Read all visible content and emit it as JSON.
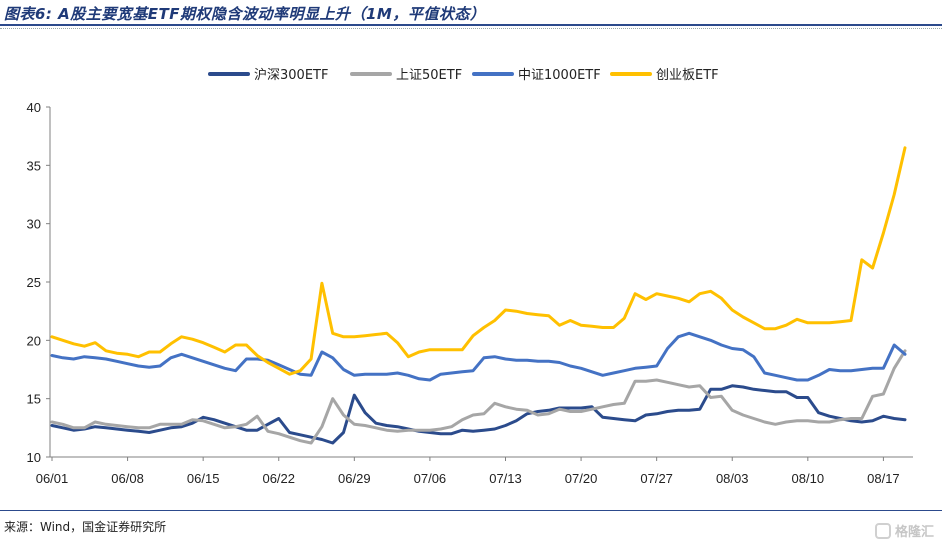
{
  "figure": {
    "title": "图表6: A股主要宽基ETF期权隐含波动率明显上升（1M，平值状态）",
    "source": "来源：Wind，国金证券研究所",
    "watermark": "格隆汇"
  },
  "chart_data": {
    "type": "line",
    "title": "",
    "xlabel": "",
    "ylabel": "",
    "ylim": [
      10,
      40
    ],
    "yticks": [
      10,
      15,
      20,
      25,
      30,
      35,
      40
    ],
    "grid": false,
    "legend_position": "top-center",
    "x_tick_labels": [
      "06/01",
      "06/08",
      "06/15",
      "06/22",
      "06/29",
      "07/06",
      "07/13",
      "07/20",
      "07/27",
      "08/03",
      "08/10",
      "08/17"
    ],
    "x": [
      "06/01",
      "06/02",
      "06/03",
      "06/04",
      "06/05",
      "06/06",
      "06/07",
      "06/08",
      "06/09",
      "06/10",
      "06/11",
      "06/12",
      "06/13",
      "06/14",
      "06/15",
      "06/16",
      "06/17",
      "06/18",
      "06/19",
      "06/20",
      "06/21",
      "06/22",
      "06/23",
      "06/24",
      "06/25",
      "06/26",
      "06/27",
      "06/28",
      "06/29",
      "06/30",
      "07/01",
      "07/02",
      "07/03",
      "07/04",
      "07/05",
      "07/06",
      "07/07",
      "07/08",
      "07/09",
      "07/10",
      "07/11",
      "07/12",
      "07/13",
      "07/14",
      "07/15",
      "07/16",
      "07/17",
      "07/18",
      "07/19",
      "07/20",
      "07/21",
      "07/22",
      "07/23",
      "07/24",
      "07/25",
      "07/26",
      "07/27",
      "07/28",
      "07/29",
      "07/30",
      "07/31",
      "08/01",
      "08/02",
      "08/03",
      "08/04",
      "08/05",
      "08/06",
      "08/07",
      "08/08",
      "08/09",
      "08/10",
      "08/11",
      "08/12",
      "08/13",
      "08/14",
      "08/15",
      "08/16",
      "08/17",
      "08/18",
      "08/19"
    ],
    "series": [
      {
        "name": "沪深300ETF",
        "color": "#2b4b8c",
        "values": [
          12.7,
          12.5,
          12.3,
          12.4,
          12.6,
          12.5,
          12.4,
          12.3,
          12.2,
          12.1,
          12.3,
          12.5,
          12.6,
          12.9,
          13.4,
          13.2,
          12.9,
          12.6,
          12.3,
          12.3,
          12.8,
          13.3,
          12.1,
          11.9,
          11.7,
          11.5,
          11.2,
          12.1,
          15.3,
          13.8,
          12.9,
          12.7,
          12.6,
          12.4,
          12.2,
          12.1,
          12.0,
          12.0,
          12.3,
          12.2,
          12.3,
          12.4,
          12.7,
          13.1,
          13.7,
          13.9,
          14.0,
          14.2,
          14.2,
          14.2,
          14.3,
          13.4,
          13.3,
          13.2,
          13.1,
          13.6,
          13.7,
          13.9,
          14.0,
          14.0,
          14.1,
          15.8,
          15.8,
          16.1,
          16.0,
          15.8,
          15.7,
          15.6,
          15.6,
          15.1,
          15.1,
          13.8,
          13.5,
          13.3,
          13.1,
          13.0,
          13.1,
          13.5,
          13.3,
          13.2
        ]
      },
      {
        "name": "上证50ETF",
        "color": "#a6a6a6",
        "values": [
          13.0,
          12.8,
          12.5,
          12.5,
          13.0,
          12.8,
          12.7,
          12.6,
          12.5,
          12.5,
          12.8,
          12.8,
          12.8,
          13.2,
          13.1,
          12.8,
          12.5,
          12.6,
          12.8,
          13.5,
          12.2,
          12.0,
          11.7,
          11.4,
          11.2,
          12.6,
          15.0,
          13.6,
          12.8,
          12.7,
          12.5,
          12.3,
          12.2,
          12.3,
          12.3,
          12.3,
          12.4,
          12.6,
          13.2,
          13.6,
          13.7,
          14.6,
          14.3,
          14.1,
          14.0,
          13.6,
          13.7,
          14.1,
          13.9,
          13.9,
          14.1,
          14.3,
          14.5,
          14.6,
          16.5,
          16.5,
          16.6,
          16.4,
          16.2,
          16.0,
          16.1,
          15.1,
          15.2,
          14.0,
          13.6,
          13.3,
          13.0,
          12.8,
          13.0,
          13.1,
          13.1,
          13.0,
          13.0,
          13.2,
          13.3,
          13.3,
          15.2,
          15.4,
          17.6,
          19.1
        ]
      },
      {
        "name": "中证1000ETF",
        "color": "#4472c4",
        "values": [
          18.7,
          18.5,
          18.4,
          18.6,
          18.5,
          18.4,
          18.2,
          18.0,
          17.8,
          17.7,
          17.8,
          18.5,
          18.8,
          18.5,
          18.2,
          17.9,
          17.6,
          17.4,
          18.4,
          18.4,
          18.3,
          17.9,
          17.5,
          17.1,
          17.0,
          19.0,
          18.5,
          17.5,
          17.0,
          17.1,
          17.1,
          17.1,
          17.2,
          17.0,
          16.7,
          16.6,
          17.1,
          17.2,
          17.3,
          17.4,
          18.5,
          18.6,
          18.4,
          18.3,
          18.3,
          18.2,
          18.2,
          18.1,
          17.8,
          17.6,
          17.3,
          17.0,
          17.2,
          17.4,
          17.6,
          17.7,
          17.8,
          19.3,
          20.3,
          20.6,
          20.3,
          20.0,
          19.6,
          19.3,
          19.2,
          18.6,
          17.2,
          17.0,
          16.8,
          16.6,
          16.6,
          17.0,
          17.5,
          17.4,
          17.4,
          17.5,
          17.6,
          17.6,
          19.6,
          18.8
        ]
      },
      {
        "name": "创业板ETF",
        "color": "#ffc000",
        "values": [
          20.3,
          20.0,
          19.7,
          19.5,
          19.8,
          19.1,
          18.9,
          18.8,
          18.6,
          19.0,
          19.0,
          19.7,
          20.3,
          20.1,
          19.8,
          19.4,
          19.0,
          19.6,
          19.6,
          18.7,
          18.1,
          17.6,
          17.1,
          17.4,
          18.4,
          24.9,
          20.6,
          20.3,
          20.3,
          20.4,
          20.5,
          20.6,
          19.8,
          18.6,
          19.0,
          19.2,
          19.2,
          19.2,
          19.2,
          20.4,
          21.1,
          21.7,
          22.6,
          22.5,
          22.3,
          22.2,
          22.1,
          21.3,
          21.7,
          21.3,
          21.2,
          21.1,
          21.1,
          21.9,
          24.0,
          23.5,
          24.0,
          23.8,
          23.6,
          23.3,
          24.0,
          24.2,
          23.6,
          22.6,
          22.0,
          21.5,
          21.0,
          21.0,
          21.3,
          21.8,
          21.5,
          21.5,
          21.5,
          21.6,
          21.7,
          26.9,
          26.2,
          29.2,
          32.5,
          36.5
        ]
      }
    ]
  }
}
